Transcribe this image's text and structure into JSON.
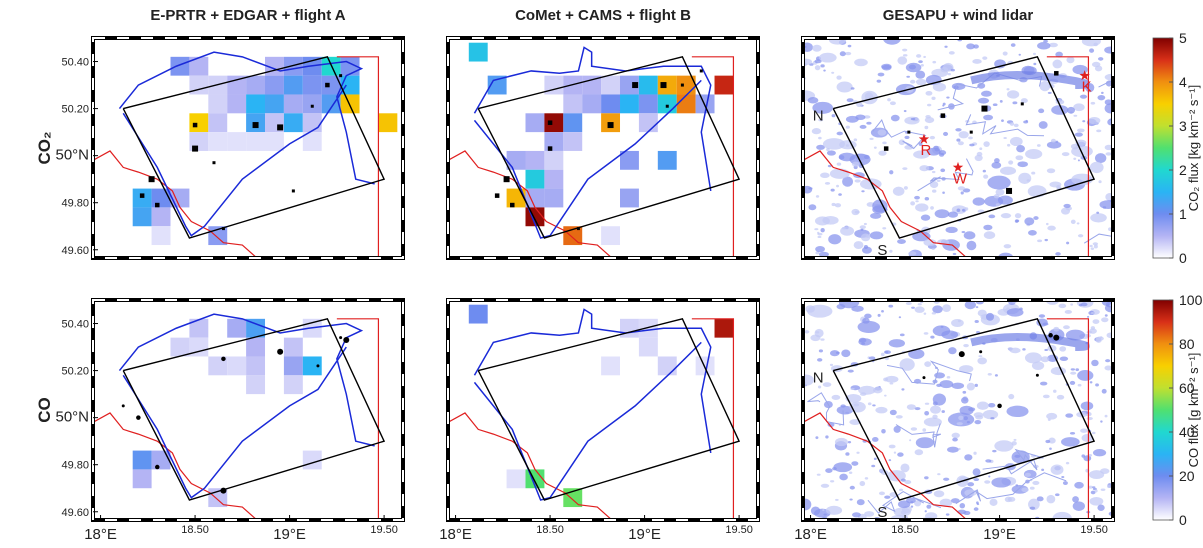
{
  "row_labels": [
    "CO₂",
    "CO"
  ],
  "colormap": [
    "#ffffff",
    "#b4b4f4",
    "#6e8cf0",
    "#2ab4f4",
    "#20d8d0",
    "#50e070",
    "#c0e030",
    "#f8d000",
    "#f09010",
    "#d83018",
    "#800000"
  ],
  "chart_data": [
    {
      "type": "heatmap",
      "title": "E-PRTR + EDGAR + flight A",
      "xlim": [
        17.96,
        19.6
      ],
      "ylim": [
        49.565,
        50.5
      ],
      "yticks": [
        {
          "value": 49.6,
          "label": "49.60"
        },
        {
          "value": 49.8,
          "label": "49.80"
        },
        {
          "value": 50,
          "label": "50°N"
        },
        {
          "value": 50.2,
          "label": "50.20"
        },
        {
          "value": 50.4,
          "label": "50.40"
        }
      ],
      "x": [
        18.42,
        18.52,
        18.92,
        19.02,
        19.12,
        19.22,
        19.32,
        18.52,
        18.62,
        18.72,
        18.82,
        18.92,
        19.02,
        19.12,
        19.22,
        19.32,
        18.62,
        18.72,
        18.82,
        18.92,
        19.02,
        19.12,
        19.22,
        19.32,
        18.52,
        18.62,
        18.82,
        18.92,
        19.02,
        19.12,
        19.52,
        18.52,
        18.62,
        18.72,
        18.82,
        18.92,
        19.12,
        18.22,
        18.32,
        18.42,
        18.22,
        18.32,
        18.32,
        18.62
      ],
      "y": [
        50.38,
        50.38,
        50.38,
        50.38,
        50.38,
        50.38,
        50.38,
        50.3,
        50.3,
        50.3,
        50.3,
        50.3,
        50.3,
        50.3,
        50.3,
        50.3,
        50.22,
        50.22,
        50.22,
        50.22,
        50.22,
        50.22,
        50.22,
        50.22,
        50.14,
        50.14,
        50.14,
        50.14,
        50.14,
        50.14,
        50.14,
        50.06,
        50.06,
        50.06,
        50.06,
        50.06,
        50.06,
        49.82,
        49.82,
        49.82,
        49.74,
        49.74,
        49.66,
        49.66
      ],
      "values": [
        0.9,
        0.5,
        0.5,
        0.8,
        1.0,
        2.0,
        0.9,
        0.3,
        0.3,
        0.5,
        0.6,
        0.8,
        1.2,
        0.9,
        0.9,
        1.5,
        0.3,
        0.5,
        1.5,
        1.3,
        0.6,
        0.7,
        1.2,
        3.6,
        3.5,
        0.4,
        1.3,
        0.4,
        1.4,
        0.4,
        3.6,
        0.3,
        0.2,
        0.2,
        0.2,
        0.2,
        0.2,
        1.4,
        1.0,
        0.6,
        1.3,
        0.5,
        0.2,
        0.8
      ],
      "sources": {
        "x": [
          19.27,
          18.5,
          18.82,
          19.12,
          18.3,
          18.27,
          18.65,
          18.22,
          18.95,
          19.02,
          19.2,
          18.5,
          18.6
        ],
        "y": [
          50.34,
          50.13,
          50.13,
          50.21,
          49.79,
          49.9,
          49.69,
          49.83,
          50.12,
          49.85,
          50.3,
          50.03,
          49.97
        ]
      }
    },
    {
      "type": "heatmap",
      "title": "CoMet + CAMS + flight B",
      "xlim": [
        17.96,
        19.6
      ],
      "ylim": [
        49.565,
        50.5
      ],
      "x": [
        18.12,
        18.22,
        18.52,
        18.62,
        18.72,
        18.82,
        18.92,
        19.02,
        19.12,
        19.22,
        19.42,
        18.62,
        18.72,
        18.82,
        18.92,
        19.02,
        19.12,
        19.22,
        19.32,
        18.42,
        18.52,
        18.62,
        18.82,
        19.02,
        18.52,
        18.62,
        18.32,
        18.42,
        18.52,
        18.92,
        19.12,
        18.42,
        18.52,
        18.32,
        18.42,
        18.52,
        18.92,
        18.42,
        18.62,
        18.82
      ],
      "y": [
        50.44,
        50.3,
        50.3,
        50.3,
        50.3,
        50.3,
        50.3,
        50.3,
        50.3,
        50.3,
        50.3,
        50.22,
        50.22,
        50.22,
        50.22,
        50.22,
        50.22,
        50.22,
        50.22,
        50.14,
        50.14,
        50.14,
        50.14,
        50.14,
        50.06,
        50.06,
        49.98,
        49.98,
        49.98,
        49.98,
        49.98,
        49.9,
        49.9,
        49.82,
        49.82,
        49.82,
        49.82,
        49.74,
        49.66,
        49.66
      ],
      "values": [
        1.7,
        1.2,
        0.3,
        0.5,
        0.5,
        0.3,
        0.7,
        1.6,
        3.8,
        4.0,
        4.6,
        0.4,
        0.6,
        1.0,
        1.5,
        0.9,
        1.8,
        4.1,
        0.7,
        0.6,
        4.9,
        1.1,
        3.9,
        0.4,
        0.6,
        0.4,
        0.6,
        0.5,
        0.3,
        0.8,
        1.2,
        1.8,
        0.5,
        3.7,
        0.6,
        0.6,
        0.7,
        4.9,
        4.2,
        0.2
      ],
      "sources": {
        "x": [
          19.3,
          18.5,
          18.82,
          19.12,
          18.3,
          18.27,
          18.65,
          18.22,
          18.95,
          19.2,
          18.5,
          19.1
        ],
        "y": [
          50.36,
          50.14,
          50.13,
          50.21,
          49.79,
          49.9,
          49.69,
          49.83,
          50.3,
          50.3,
          50.03,
          50.3
        ]
      }
    },
    {
      "type": "image",
      "title": "GESAPU + wind lidar",
      "xlim": [
        17.96,
        19.6
      ],
      "ylim": [
        49.565,
        50.5
      ],
      "sources": {
        "x": [
          18.52,
          18.7,
          18.92,
          19.12,
          19.3,
          19.05,
          18.85,
          18.4
        ],
        "y": [
          50.1,
          50.17,
          50.2,
          50.22,
          50.35,
          49.85,
          50.1,
          50.03
        ]
      },
      "annotations": [
        {
          "text": "N",
          "x": 18.04,
          "y": 50.17
        },
        {
          "text": "S",
          "x": 18.38,
          "y": 49.6
        }
      ],
      "markers": [
        {
          "label": "R",
          "x": 18.6,
          "y": 50.07
        },
        {
          "label": "W",
          "x": 18.78,
          "y": 49.95
        },
        {
          "label": "K",
          "x": 19.45,
          "y": 50.34
        }
      ],
      "colorbar": {
        "label": "CO₂ flux [kg km⁻² s⁻¹]",
        "clim": [
          0,
          5
        ],
        "ticks": [
          0,
          1,
          2,
          3,
          4,
          5
        ]
      }
    },
    {
      "type": "heatmap",
      "xlim": [
        17.96,
        19.6
      ],
      "ylim": [
        49.565,
        50.5
      ],
      "xticks": [
        {
          "value": 18,
          "label": "18°E"
        },
        {
          "value": 18.5,
          "label": "18.50"
        },
        {
          "value": 19,
          "label": "19°E"
        },
        {
          "value": 19.5,
          "label": "19.50"
        }
      ],
      "yticks": [
        {
          "value": 49.6,
          "label": "49.60"
        },
        {
          "value": 49.8,
          "label": "49.80"
        },
        {
          "value": 50,
          "label": "50°N"
        },
        {
          "value": 50.2,
          "label": "50.20"
        },
        {
          "value": 50.4,
          "label": "50.40"
        }
      ],
      "x": [
        18.52,
        18.72,
        18.82,
        19.12,
        18.42,
        18.52,
        18.82,
        19.02,
        18.62,
        18.72,
        18.82,
        19.02,
        19.12,
        18.82,
        19.02,
        18.22,
        18.32,
        18.22,
        19.12,
        18.62
      ],
      "y": [
        50.38,
        50.38,
        50.38,
        50.38,
        50.3,
        50.3,
        50.3,
        50.3,
        50.22,
        50.22,
        50.22,
        50.22,
        50.22,
        50.14,
        50.14,
        49.82,
        49.82,
        49.74,
        49.82,
        49.66
      ],
      "values": [
        8,
        12,
        25,
        5,
        6,
        5,
        10,
        8,
        6,
        5,
        8,
        14,
        30,
        6,
        6,
        22,
        12,
        10,
        5,
        8
      ],
      "sources": {
        "x": [
          19.27,
          18.3,
          18.65,
          18.12,
          18.2,
          18.95,
          19.15,
          18.65,
          19.3
        ],
        "y": [
          50.34,
          49.79,
          49.69,
          50.05,
          50.0,
          50.28,
          50.22,
          50.25,
          50.33
        ]
      }
    },
    {
      "type": "heatmap",
      "xlim": [
        17.96,
        19.6
      ],
      "ylim": [
        49.565,
        50.5
      ],
      "xticks": [
        {
          "value": 18,
          "label": "18°E"
        },
        {
          "value": 18.5,
          "label": "18.50"
        },
        {
          "value": 19,
          "label": "19°E"
        },
        {
          "value": 19.5,
          "label": "19.50"
        }
      ],
      "x": [
        18.12,
        18.92,
        19.02,
        19.42,
        19.02,
        18.82,
        19.12,
        19.32,
        18.42,
        18.62,
        18.32
      ],
      "y": [
        50.44,
        50.38,
        50.38,
        50.38,
        50.3,
        50.22,
        50.22,
        50.22,
        49.74,
        49.66,
        49.74
      ],
      "values": [
        20,
        6,
        5,
        95,
        5,
        4,
        6,
        4,
        50,
        52,
        4
      ]
    },
    {
      "type": "image",
      "xlim": [
        17.96,
        19.6
      ],
      "ylim": [
        49.565,
        50.5
      ],
      "xticks": [
        {
          "value": 18,
          "label": "18°E"
        },
        {
          "value": 18.5,
          "label": "18.50"
        },
        {
          "value": 19,
          "label": "19°E"
        },
        {
          "value": 19.5,
          "label": "19.50"
        }
      ],
      "sources": {
        "x": [
          18.9,
          19.27,
          19.3,
          18.6,
          19.0,
          18.8,
          19.2
        ],
        "y": [
          50.28,
          50.35,
          50.34,
          50.17,
          50.05,
          50.27,
          50.18
        ]
      },
      "annotations": [
        {
          "text": "N",
          "x": 18.04,
          "y": 50.17
        },
        {
          "text": "S",
          "x": 18.38,
          "y": 49.6
        }
      ],
      "colorbar": {
        "label": "CO flux [g km⁻² s⁻¹]",
        "clim": [
          0,
          100
        ],
        "ticks": [
          0,
          20,
          40,
          60,
          80,
          100
        ]
      }
    }
  ]
}
